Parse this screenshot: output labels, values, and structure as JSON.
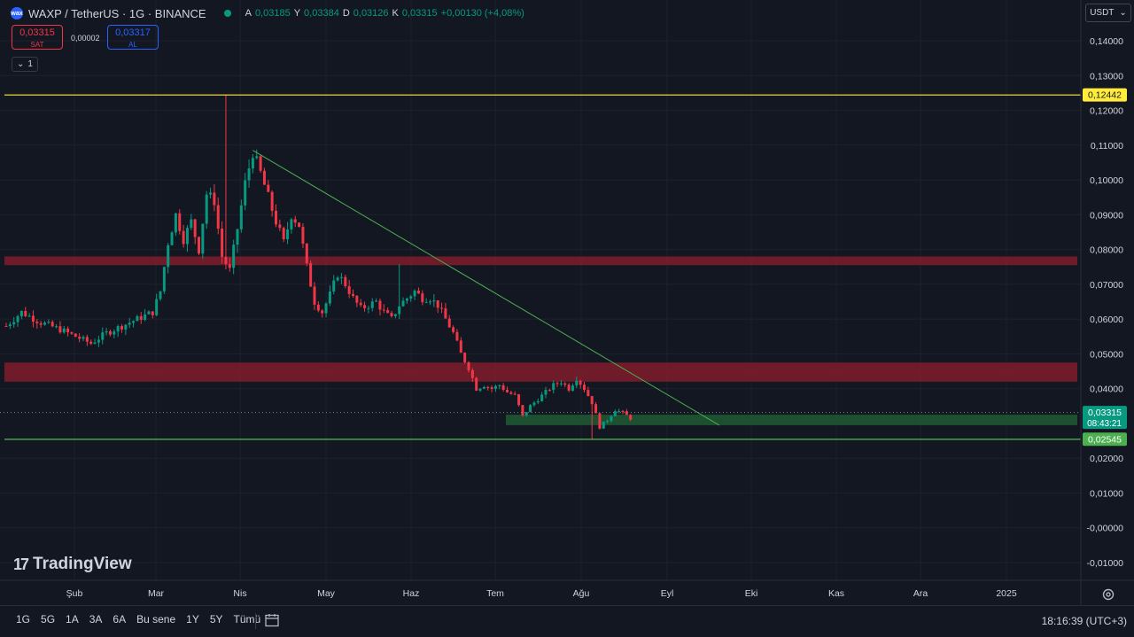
{
  "header": {
    "logo_text": "wax",
    "symbol": "WAXP / TetherUS · 1G · BINANCE",
    "ohlc": [
      {
        "k": "A",
        "v": "0,03185"
      },
      {
        "k": "Y",
        "v": "0,03384"
      },
      {
        "k": "D",
        "v": "0,03126"
      },
      {
        "k": "K",
        "v": "0,03315"
      }
    ],
    "change": "+0,00130 (+4,08%)"
  },
  "trade": {
    "sell_price": "0,03315",
    "sell_label": "SAT",
    "spread": "0,00002",
    "buy_price": "0,03317",
    "buy_label": "AL"
  },
  "indicator_count": "1",
  "currency": "USDT",
  "branding": "TradingView",
  "colors": {
    "up": "#089981",
    "down": "#f23645",
    "resistance_zone": "#7b1c2b",
    "support_zone": "#1e5a32",
    "yellow_line": "#ffeb3b",
    "green_line": "#4caf50",
    "trendline": "#4caf50",
    "grid": "#1e222d",
    "background": "#131722"
  },
  "chart_data": {
    "type": "candlestick",
    "y_axis": {
      "ylim": [
        -0.01,
        0.14
      ],
      "ticks": [
        "0,14000",
        "0,13000",
        "0,12000",
        "0,11000",
        "0,10000",
        "0,09000",
        "0,08000",
        "0,07000",
        "0,06000",
        "0,05000",
        "0,04000",
        "0,02000",
        "0,01000",
        "-0,00000",
        "-0,01000"
      ]
    },
    "x_axis": {
      "months": [
        "Şub",
        "Mar",
        "Nis",
        "May",
        "Haz",
        "Tem",
        "Ağu",
        "Eyl",
        "Eki",
        "Kas",
        "Ara",
        "2025"
      ]
    },
    "close_path": [
      [
        0,
        0.058
      ],
      [
        4,
        0.062
      ],
      [
        9,
        0.059
      ],
      [
        14,
        0.057
      ],
      [
        18,
        0.055
      ],
      [
        22,
        0.053
      ],
      [
        26,
        0.056
      ],
      [
        30,
        0.058
      ],
      [
        34,
        0.06
      ],
      [
        38,
        0.062
      ],
      [
        40,
        0.068
      ],
      [
        42,
        0.082
      ],
      [
        44,
        0.09
      ],
      [
        46,
        0.083
      ],
      [
        48,
        0.088
      ],
      [
        50,
        0.08
      ],
      [
        52,
        0.096
      ],
      [
        54,
        0.094
      ],
      [
        56,
        0.078
      ],
      [
        58,
        0.074
      ],
      [
        60,
        0.086
      ],
      [
        62,
        0.099
      ],
      [
        64,
        0.108
      ],
      [
        66,
        0.102
      ],
      [
        68,
        0.095
      ],
      [
        70,
        0.088
      ],
      [
        72,
        0.082
      ],
      [
        74,
        0.09
      ],
      [
        76,
        0.087
      ],
      [
        78,
        0.075
      ],
      [
        80,
        0.065
      ],
      [
        82,
        0.062
      ],
      [
        84,
        0.067
      ],
      [
        86,
        0.073
      ],
      [
        88,
        0.07
      ],
      [
        90,
        0.066
      ],
      [
        92,
        0.063
      ],
      [
        94,
        0.064
      ],
      [
        96,
        0.065
      ],
      [
        98,
        0.062
      ],
      [
        100,
        0.06
      ],
      [
        102,
        0.064
      ],
      [
        104,
        0.066
      ],
      [
        106,
        0.068
      ],
      [
        108,
        0.066
      ],
      [
        110,
        0.066
      ],
      [
        112,
        0.064
      ],
      [
        114,
        0.06
      ],
      [
        116,
        0.056
      ],
      [
        118,
        0.05
      ],
      [
        120,
        0.046
      ],
      [
        122,
        0.04
      ],
      [
        124,
        0.041
      ],
      [
        126,
        0.04
      ],
      [
        128,
        0.041
      ],
      [
        130,
        0.039
      ],
      [
        132,
        0.038
      ],
      [
        134,
        0.032
      ],
      [
        136,
        0.035
      ],
      [
        138,
        0.037
      ],
      [
        140,
        0.039
      ],
      [
        142,
        0.041
      ],
      [
        144,
        0.042
      ],
      [
        146,
        0.04
      ],
      [
        148,
        0.043
      ],
      [
        150,
        0.04
      ],
      [
        152,
        0.036
      ],
      [
        154,
        0.029
      ],
      [
        156,
        0.031
      ],
      [
        158,
        0.034
      ],
      [
        160,
        0.033
      ],
      [
        162,
        0.0315
      ]
    ],
    "annotations": {
      "resistance_line": {
        "value": 0.12442,
        "label": "0,12442"
      },
      "support_line": {
        "value": 0.02545,
        "label": "0,02545"
      },
      "resistance_zones": [
        [
          0.0755,
          0.078
        ],
        [
          0.042,
          0.0475
        ]
      ],
      "support_zone": [
        0.0295,
        0.0325
      ],
      "trendline": [
        [
          64,
          0.1085
        ],
        [
          185,
          0.0295
        ]
      ],
      "last_price": {
        "value": 0.03315,
        "label": "0,03315",
        "countdown": "08:43:21"
      }
    }
  },
  "bottom": {
    "ranges": [
      "1G",
      "5G",
      "1A",
      "3A",
      "6A",
      "Bu sene",
      "1Y",
      "5Y",
      "Tümü"
    ],
    "time": "18:16:39 (UTC+3)"
  }
}
